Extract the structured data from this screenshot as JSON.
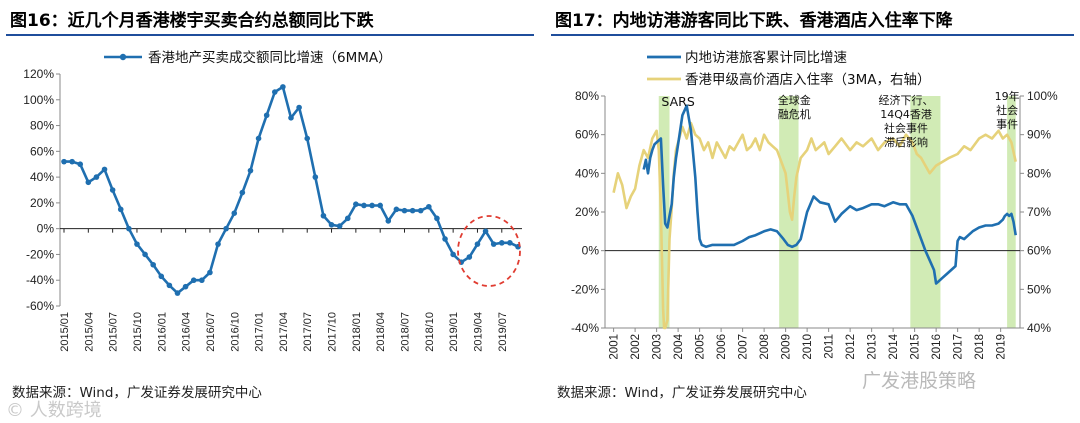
{
  "left": {
    "title": "图16：近几个月香港楼宇买卖合约总额同比下跌",
    "source": "数据来源：Wind，广发证券发展研究中心",
    "watermark": "© 人数跨境"
  },
  "right": {
    "title": "图17：内地访港游客同比下跌、香港酒店入住率下降",
    "source": "数据来源：Wind，广发证券发展研究中心",
    "watermark": "广发港股策略"
  },
  "colors": {
    "blue": "#1f6fb0",
    "gold": "#e6d27a",
    "shade": "#c9e8a8",
    "red": "#e03c31",
    "axis": "#8a8a8a"
  },
  "chart_data": [
    {
      "type": "line",
      "title": "",
      "xlabel": "",
      "ylabel": "",
      "ylim": [
        -60,
        120
      ],
      "yticks": [
        -60,
        -40,
        -20,
        0,
        20,
        40,
        60,
        80,
        100,
        120
      ],
      "ytick_labels": [
        "-60%",
        "-40%",
        "-20%",
        "0%",
        "20%",
        "40%",
        "60%",
        "80%",
        "100%",
        "120%"
      ],
      "xtick_labels": [
        "2015/01",
        "2015/04",
        "2015/07",
        "2015/10",
        "2016/01",
        "2016/04",
        "2016/07",
        "2016/10",
        "2017/01",
        "2017/04",
        "2017/07",
        "2017/10",
        "2018/01",
        "2018/04",
        "2018/07",
        "2018/10",
        "2019/01",
        "2019/04",
        "2019/07"
      ],
      "legend": "top",
      "annotation": "red dashed circle around 2019 decline",
      "series": [
        {
          "name": "香港地产买卖成交额同比增速（6MMA）",
          "color": "#1f6fb0",
          "x": [
            "2015/01",
            "2015/02",
            "2015/03",
            "2015/04",
            "2015/05",
            "2015/06",
            "2015/07",
            "2015/08",
            "2015/09",
            "2015/10",
            "2015/11",
            "2015/12",
            "2016/01",
            "2016/02",
            "2016/03",
            "2016/04",
            "2016/05",
            "2016/06",
            "2016/07",
            "2016/08",
            "2016/09",
            "2016/10",
            "2016/11",
            "2016/12",
            "2017/01",
            "2017/02",
            "2017/03",
            "2017/04",
            "2017/05",
            "2017/06",
            "2017/07",
            "2017/08",
            "2017/09",
            "2017/10",
            "2017/11",
            "2017/12",
            "2018/01",
            "2018/02",
            "2018/03",
            "2018/04",
            "2018/05",
            "2018/06",
            "2018/07",
            "2018/08",
            "2018/09",
            "2018/10",
            "2018/11",
            "2018/12",
            "2019/01",
            "2019/02",
            "2019/03",
            "2019/04",
            "2019/05",
            "2019/06",
            "2019/07",
            "2019/08",
            "2019/09"
          ],
          "values": [
            52,
            52,
            50,
            36,
            40,
            46,
            30,
            15,
            0,
            -12,
            -20,
            -28,
            -37,
            -44,
            -50,
            -45,
            -40,
            -40,
            -34,
            -12,
            0,
            12,
            28,
            45,
            70,
            88,
            106,
            110,
            86,
            94,
            70,
            40,
            10,
            3,
            2,
            8,
            19,
            18,
            18,
            18,
            6,
            15,
            14,
            14,
            14,
            17,
            8,
            -8,
            -20,
            -26,
            -22,
            -12,
            -2,
            -12,
            -11,
            -11,
            -14
          ]
        }
      ]
    },
    {
      "type": "line",
      "title": "",
      "xlabel": "",
      "ylabel": "",
      "ylim": [
        -40,
        80
      ],
      "yticks": [
        -40,
        -20,
        0,
        20,
        40,
        60,
        80
      ],
      "ytick_labels": [
        "-40%",
        "-20%",
        "0%",
        "20%",
        "40%",
        "60%",
        "80%"
      ],
      "y2lim": [
        40,
        100
      ],
      "y2ticks": [
        40,
        50,
        60,
        70,
        80,
        90,
        100
      ],
      "y2tick_labels": [
        "40%",
        "50%",
        "60%",
        "70%",
        "80%",
        "90%",
        "100%"
      ],
      "xtick_labels": [
        "2001",
        "2002",
        "2003",
        "2004",
        "2005",
        "2006",
        "2007",
        "2008",
        "2009",
        "2010",
        "2011",
        "2012",
        "2013",
        "2014",
        "2015",
        "2016",
        "2017",
        "2018",
        "2019"
      ],
      "legend": "top",
      "shaded_periods": [
        {
          "start": 2003.1,
          "end": 2003.6,
          "label": "SARS"
        },
        {
          "start": 2008.7,
          "end": 2009.6,
          "label": "全球金融危机"
        },
        {
          "start": 2014.8,
          "end": 2016.2,
          "label": "经济下行、14Q4香港社会事件滞后影响"
        },
        {
          "start": 2019.3,
          "end": 2019.7,
          "label": "19年社会事件"
        }
      ],
      "series": [
        {
          "name": "内地访港旅客累计同比增速",
          "color": "#1f6fb0",
          "axis": "left",
          "x": [
            2002.4,
            2002.5,
            2002.6,
            2002.7,
            2002.8,
            2002.9,
            2003.0,
            2003.2,
            2003.3,
            2003.4,
            2003.5,
            2003.6,
            2003.7,
            2003.8,
            2003.9,
            2004.0,
            2004.2,
            2004.4,
            2004.6,
            2004.8,
            2004.9,
            2005.0,
            2005.1,
            2005.3,
            2005.6,
            2006.0,
            2006.3,
            2006.6,
            2007.0,
            2007.3,
            2007.6,
            2008.0,
            2008.3,
            2008.6,
            2008.9,
            2009.1,
            2009.3,
            2009.5,
            2009.7,
            2010.0,
            2010.3,
            2010.6,
            2011.0,
            2011.3,
            2011.6,
            2012.0,
            2012.3,
            2012.6,
            2013.0,
            2013.3,
            2013.6,
            2014.0,
            2014.3,
            2014.6,
            2014.9,
            2015.1,
            2015.3,
            2015.5,
            2015.7,
            2015.9,
            2016.0,
            2016.1,
            2016.3,
            2016.5,
            2016.7,
            2016.9,
            2017.0,
            2017.1,
            2017.3,
            2017.5,
            2017.7,
            2018.0,
            2018.3,
            2018.6,
            2018.9,
            2019.1,
            2019.2,
            2019.3,
            2019.4,
            2019.5,
            2019.6,
            2019.7
          ],
          "values": [
            42,
            47,
            40,
            48,
            52,
            55,
            56,
            58,
            34,
            14,
            12,
            18,
            24,
            38,
            48,
            55,
            70,
            75,
            62,
            38,
            20,
            6,
            3,
            2,
            3,
            3,
            3,
            3,
            5,
            7,
            8,
            10,
            11,
            10,
            6,
            3,
            2,
            3,
            6,
            20,
            28,
            25,
            24,
            15,
            19,
            23,
            21,
            22,
            24,
            24,
            23,
            25,
            24,
            24,
            18,
            12,
            6,
            0,
            -5,
            -10,
            -17,
            -16,
            -14,
            -12,
            -10,
            -8,
            5,
            7,
            6,
            8,
            10,
            12,
            13,
            13,
            14,
            16,
            18,
            19,
            18,
            19,
            15,
            8
          ]
        },
        {
          "name": "香港甲级高价酒店入住率（3MA，右轴）",
          "color": "#e6d27a",
          "axis": "right",
          "x": [
            2001.0,
            2001.2,
            2001.4,
            2001.6,
            2001.8,
            2002.0,
            2002.2,
            2002.4,
            2002.6,
            2002.8,
            2003.0,
            2003.1,
            2003.2,
            2003.3,
            2003.35,
            2003.4,
            2003.5,
            2003.6,
            2003.7,
            2003.8,
            2003.9,
            2004.0,
            2004.2,
            2004.4,
            2004.6,
            2004.8,
            2005.0,
            2005.2,
            2005.4,
            2005.6,
            2005.8,
            2006.0,
            2006.2,
            2006.4,
            2006.6,
            2006.8,
            2007.0,
            2007.2,
            2007.4,
            2007.6,
            2007.8,
            2008.0,
            2008.2,
            2008.4,
            2008.6,
            2008.8,
            2009.0,
            2009.1,
            2009.2,
            2009.3,
            2009.4,
            2009.5,
            2009.7,
            2010.0,
            2010.2,
            2010.4,
            2010.6,
            2010.8,
            2011.0,
            2011.3,
            2011.6,
            2012.0,
            2012.3,
            2012.6,
            2013.0,
            2013.3,
            2013.6,
            2014.0,
            2014.3,
            2014.6,
            2014.9,
            2015.1,
            2015.3,
            2015.5,
            2015.7,
            2016.0,
            2016.3,
            2016.6,
            2017.0,
            2017.3,
            2017.6,
            2018.0,
            2018.3,
            2018.6,
            2018.9,
            2019.1,
            2019.3,
            2019.5,
            2019.7
          ],
          "values": [
            75,
            80,
            77,
            71,
            74,
            76,
            82,
            86,
            84,
            89,
            91,
            86,
            70,
            45,
            40,
            38,
            42,
            63,
            71,
            80,
            86,
            88,
            92,
            89,
            93,
            90,
            89,
            86,
            88,
            84,
            88,
            86,
            84,
            87,
            86,
            88,
            90,
            86,
            87,
            89,
            86,
            90,
            88,
            87,
            86,
            83,
            80,
            75,
            70,
            68,
            74,
            79,
            84,
            86,
            89,
            86,
            87,
            88,
            85,
            87,
            89,
            86,
            88,
            87,
            89,
            86,
            88,
            89,
            87,
            90,
            88,
            85,
            84,
            82,
            80,
            82,
            83,
            84,
            85,
            87,
            86,
            89,
            90,
            89,
            91,
            89,
            90,
            88,
            83
          ]
        }
      ]
    }
  ]
}
